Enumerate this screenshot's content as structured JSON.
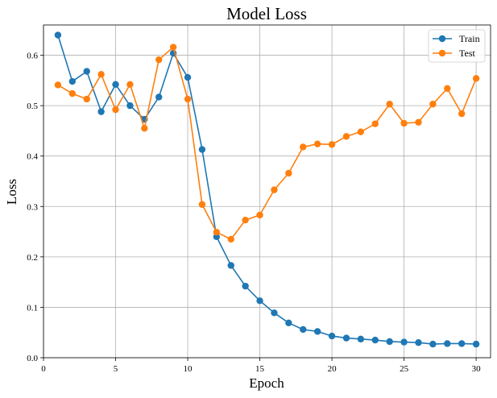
{
  "chart_data": {
    "type": "line",
    "title": "Model Loss",
    "xlabel": "Epoch",
    "ylabel": "Loss",
    "xlim": [
      0,
      31
    ],
    "ylim": [
      0,
      0.66
    ],
    "xticks": [
      0,
      5,
      10,
      15,
      20,
      25,
      30
    ],
    "yticks": [
      0.0,
      0.1,
      0.2,
      0.3,
      0.4,
      0.5,
      0.6
    ],
    "grid": true,
    "legend_position": "top-right",
    "x": [
      1,
      2,
      3,
      4,
      5,
      6,
      7,
      8,
      9,
      10,
      11,
      12,
      13,
      14,
      15,
      16,
      17,
      18,
      19,
      20,
      21,
      22,
      23,
      24,
      25,
      26,
      27,
      28,
      29,
      30
    ],
    "series": [
      {
        "name": "Train",
        "color": "#1f77b4",
        "values": [
          0.64,
          0.548,
          0.568,
          0.488,
          0.542,
          0.5,
          0.473,
          0.517,
          0.604,
          0.556,
          0.413,
          0.24,
          0.183,
          0.142,
          0.113,
          0.089,
          0.069,
          0.056,
          0.052,
          0.043,
          0.039,
          0.037,
          0.035,
          0.032,
          0.031,
          0.03,
          0.027,
          0.028,
          0.028,
          0.027
        ]
      },
      {
        "name": "Test",
        "color": "#ff7f0e",
        "values": [
          0.541,
          0.524,
          0.513,
          0.562,
          0.492,
          0.542,
          0.455,
          0.591,
          0.616,
          0.513,
          0.304,
          0.249,
          0.235,
          0.273,
          0.283,
          0.333,
          0.366,
          0.418,
          0.424,
          0.423,
          0.439,
          0.448,
          0.464,
          0.503,
          0.465,
          0.467,
          0.503,
          0.534,
          0.484,
          0.554
        ]
      }
    ]
  }
}
